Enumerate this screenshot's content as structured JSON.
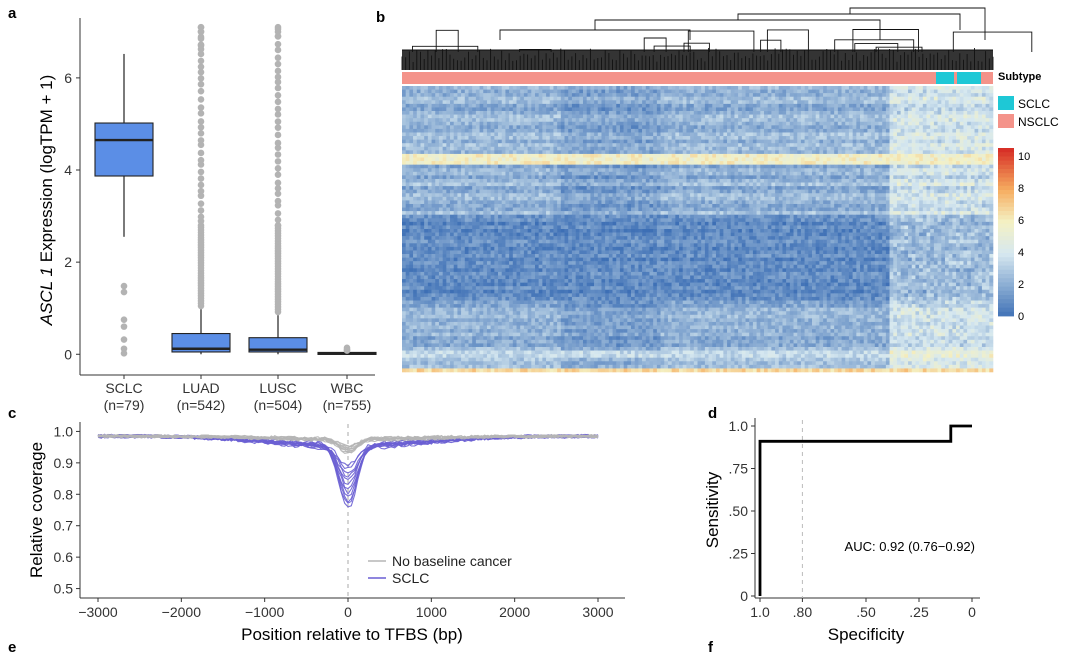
{
  "panels": {
    "a": "a",
    "b": "b",
    "c": "c",
    "d": "d",
    "e": "e",
    "f": "f"
  },
  "colors": {
    "box_fill": "#5b8ee6",
    "outlier": "#b3b3b3",
    "sclc": "#1ec8d6",
    "nsclc": "#f4938a",
    "heat_low": "#3d6fb5",
    "heat_mid": "#f4f1c4",
    "heat_high": "#d73027",
    "no_cancer_line": "#b5b5b5",
    "sclc_line": "#6a5fd3"
  },
  "chart_data": [
    {
      "id": "a",
      "type": "box",
      "ylabel_italic": "ASCL 1",
      "ylabel_rest": " Expression (logTPM + 1)",
      "ylim": [
        -0.45,
        7.3
      ],
      "yticks": [
        0,
        2,
        4,
        6
      ],
      "categories": [
        "SCLC",
        "LUAD",
        "LUSC",
        "WBC"
      ],
      "counts": [
        "(n=79)",
        "(n=542)",
        "(n=504)",
        "(n=755)"
      ],
      "boxes": [
        {
          "q1": 3.87,
          "median": 4.65,
          "q3": 5.02,
          "whisker_low": 2.55,
          "whisker_high": 6.52,
          "outliers": [
            1.48,
            1.35,
            0.75,
            0.6,
            0.32,
            0.12,
            0.02
          ]
        },
        {
          "q1": 0.05,
          "median": 0.12,
          "q3": 0.45,
          "whisker_low": 0.0,
          "whisker_high": 0.98,
          "outliers_range": [
            1.05,
            7.1
          ],
          "outliers": [
            7.1,
            7.0,
            6.85,
            6.7
          ]
        },
        {
          "q1": 0.05,
          "median": 0.1,
          "q3": 0.36,
          "whisker_low": 0.0,
          "whisker_high": 0.85,
          "outliers_range": [
            0.92,
            7.1
          ],
          "outliers": [
            7.1,
            7.0,
            6.9
          ]
        },
        {
          "q1": 0.0,
          "median": 0.02,
          "q3": 0.04,
          "whisker_low": 0.0,
          "whisker_high": 0.06,
          "outliers": [
            0.14,
            0.1,
            0.08
          ]
        }
      ]
    },
    {
      "id": "b",
      "type": "heatmap",
      "annotation_label": "Subtype",
      "legend": [
        "SCLC",
        "NSCLC"
      ],
      "colorbar_ticks": [
        10,
        8,
        6,
        4,
        2,
        0
      ],
      "colorbar_range": [
        0,
        10.5
      ]
    },
    {
      "id": "c",
      "type": "line",
      "xlabel": "Position relative to TFBS (bp)",
      "ylabel": "Relative coverage",
      "xlim": [
        -3000,
        3000
      ],
      "ylim": [
        0.5,
        1.0
      ],
      "xticks": [
        -3000,
        -2000,
        -1000,
        0,
        1000,
        2000,
        3000
      ],
      "yticks": [
        0.5,
        0.6,
        0.7,
        0.8,
        0.9,
        1.0
      ],
      "ytick_labels": [
        "0.5",
        "0.6",
        "0.7",
        "0.8",
        "0.9",
        "1.0"
      ],
      "series": [
        {
          "name": "No baseline cancer",
          "count": 10,
          "min_at_0": [
            0.945,
            0.97
          ]
        },
        {
          "name": "SCLC",
          "count": 12,
          "min_at_0": [
            0.77,
            0.91
          ]
        }
      ]
    },
    {
      "id": "d",
      "type": "line",
      "xlabel": "Specificity",
      "ylabel": "Sensitivity",
      "xticks": [
        "1.0",
        ".80",
        ".50",
        ".25",
        "0"
      ],
      "xtick_values": [
        1.0,
        0.8,
        0.5,
        0.25,
        0.0
      ],
      "yticks": [
        "0",
        ".25",
        ".50",
        ".75",
        "1.0"
      ],
      "ytick_values": [
        0,
        0.25,
        0.5,
        0.75,
        1.0
      ],
      "roc_points": [
        [
          1.0,
          0.0
        ],
        [
          1.0,
          0.91
        ],
        [
          0.1,
          0.91
        ],
        [
          0.1,
          1.0
        ],
        [
          0.0,
          1.0
        ]
      ],
      "reference_line_x": 0.8,
      "annotation": "AUC: 0.92 (0.76−0.92)"
    }
  ]
}
